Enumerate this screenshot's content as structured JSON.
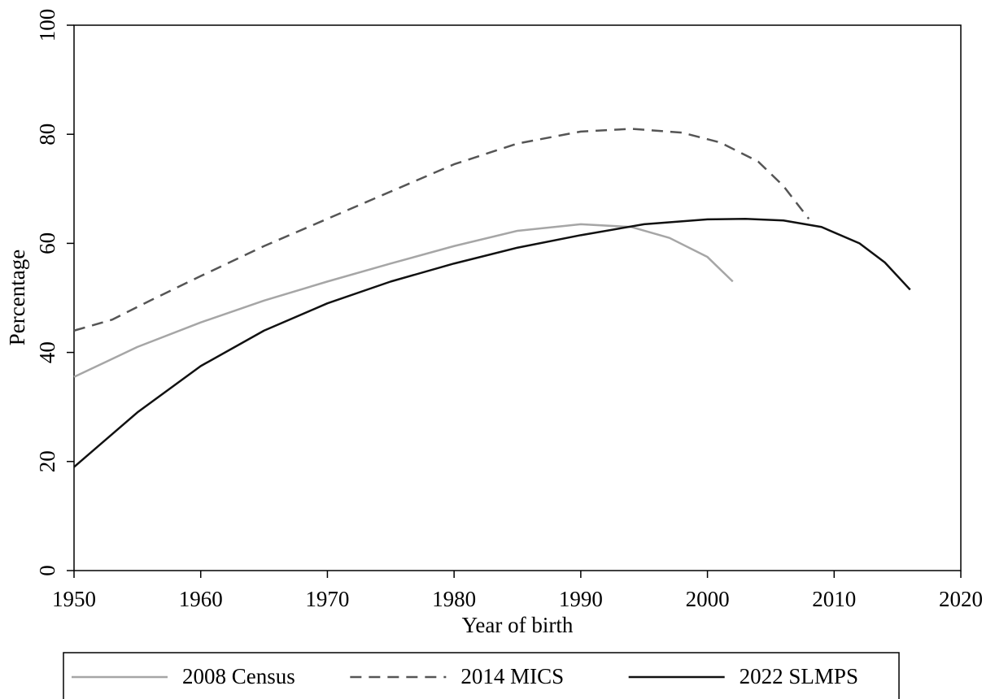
{
  "chart_data": {
    "type": "line",
    "x_label": "Year of birth",
    "y_label": "Percentage",
    "xlim": [
      1950,
      2020
    ],
    "xticks": [
      1950,
      1960,
      1970,
      1980,
      1990,
      2000,
      2010,
      2020
    ],
    "ylim": [
      0,
      100
    ],
    "yticks": [
      0,
      20,
      40,
      60,
      80,
      100
    ],
    "legend": "bottom",
    "series": [
      {
        "name": "2008 Census",
        "color": "#a6a6a6",
        "dash": "solid",
        "x": [
          1950,
          1955,
          1960,
          1965,
          1970,
          1975,
          1980,
          1985,
          1990,
          1994,
          1997,
          2000,
          2002
        ],
        "values": [
          35.5,
          41,
          45.5,
          49.5,
          53,
          56.3,
          59.5,
          62.3,
          63.5,
          63,
          61,
          57.5,
          53
        ]
      },
      {
        "name": "2014 MICS",
        "color": "#555555",
        "dash": "dashed",
        "x": [
          1950,
          1953,
          1956,
          1960,
          1965,
          1970,
          1975,
          1980,
          1985,
          1990,
          1994,
          1998,
          2001,
          2004,
          2006,
          2008
        ],
        "values": [
          44,
          46,
          49.5,
          54,
          59.5,
          64.5,
          69.5,
          74.5,
          78.3,
          80.5,
          81,
          80.3,
          78.5,
          75,
          70.5,
          64.5
        ]
      },
      {
        "name": "2022 SLMPS",
        "color": "#111111",
        "dash": "solid",
        "x": [
          1950,
          1955,
          1960,
          1965,
          1970,
          1975,
          1980,
          1985,
          1990,
          1995,
          2000,
          2003,
          2006,
          2009,
          2012,
          2014,
          2016
        ],
        "values": [
          19,
          29,
          37.5,
          44,
          49,
          53,
          56.3,
          59.2,
          61.5,
          63.5,
          64.4,
          64.5,
          64.2,
          63,
          60,
          56.5,
          51.5
        ]
      }
    ]
  }
}
